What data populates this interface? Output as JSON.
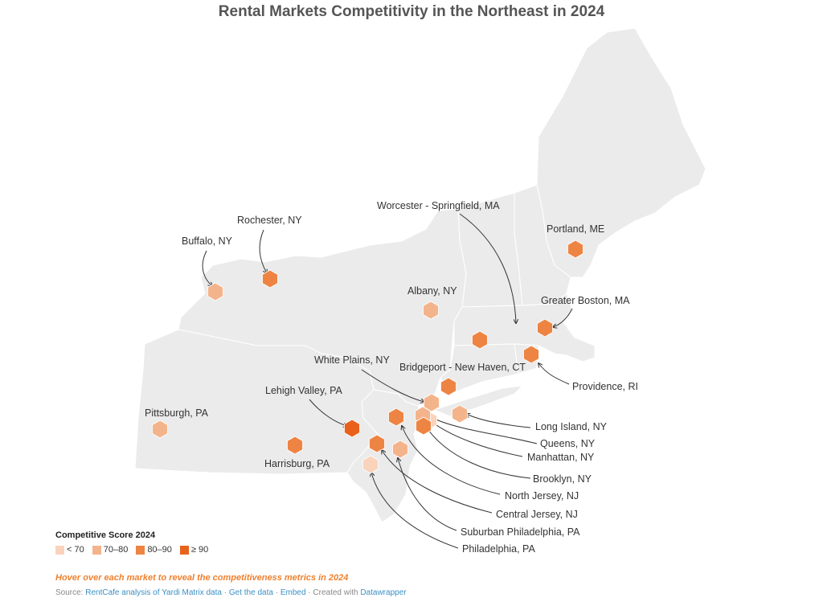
{
  "title": "Rental Markets Competitivity in the Northeast in 2024",
  "colors": {
    "lt70": "#f9d3bb",
    "b7080": "#f4b48b",
    "b8090": "#ee8443",
    "ge90": "#e8621b",
    "land": "#ebebeb",
    "border": "#ffffff"
  },
  "markets": [
    {
      "name": "Buffalo, NY",
      "cls": "b7080"
    },
    {
      "name": "Rochester, NY",
      "cls": "b8090"
    },
    {
      "name": "Albany, NY",
      "cls": "b7080"
    },
    {
      "name": "Worcester - Springfield, MA",
      "cls": "b8090"
    },
    {
      "name": "Portland, ME",
      "cls": "b8090"
    },
    {
      "name": "Greater Boston, MA",
      "cls": "b8090"
    },
    {
      "name": "Providence, RI",
      "cls": "b8090"
    },
    {
      "name": "Bridgeport - New Haven, CT",
      "cls": "b8090"
    },
    {
      "name": "White Plains, NY",
      "cls": "b7080"
    },
    {
      "name": "Lehigh Valley, PA",
      "cls": "ge90"
    },
    {
      "name": "Pittsburgh, PA",
      "cls": "b7080"
    },
    {
      "name": "Harrisburg, PA",
      "cls": "b8090"
    },
    {
      "name": "Long Island, NY",
      "cls": "b7080"
    },
    {
      "name": "Queens, NY",
      "cls": "lt70"
    },
    {
      "name": "Manhattan, NY",
      "cls": "b7080"
    },
    {
      "name": "Brooklyn, NY",
      "cls": "b8090"
    },
    {
      "name": "North Jersey, NJ",
      "cls": "b8090"
    },
    {
      "name": "Central Jersey, NJ",
      "cls": "b8090"
    },
    {
      "name": "Suburban Philadelphia, PA",
      "cls": "b7080"
    },
    {
      "name": "Philadelphia, PA",
      "cls": "lt70"
    }
  ],
  "legend": {
    "title": "Competitive Score 2024",
    "items": [
      {
        "label": "< 70",
        "cls": "lt70"
      },
      {
        "label": "70–80",
        "cls": "b7080"
      },
      {
        "label": "80–90",
        "cls": "b8090"
      },
      {
        "label": "≥ 90",
        "cls": "ge90"
      }
    ]
  },
  "hover_note": "Hover over each market to reveal the competitiveness metrics in 2024",
  "footer": {
    "source_prefix": "Source:",
    "source_link": "RentCafe analysis of Yardi Matrix data",
    "sep1": "·",
    "get_data": "Get the data",
    "sep2": "·",
    "embed": "Embed",
    "created": "· Created with",
    "tool": "Datawrapper"
  }
}
